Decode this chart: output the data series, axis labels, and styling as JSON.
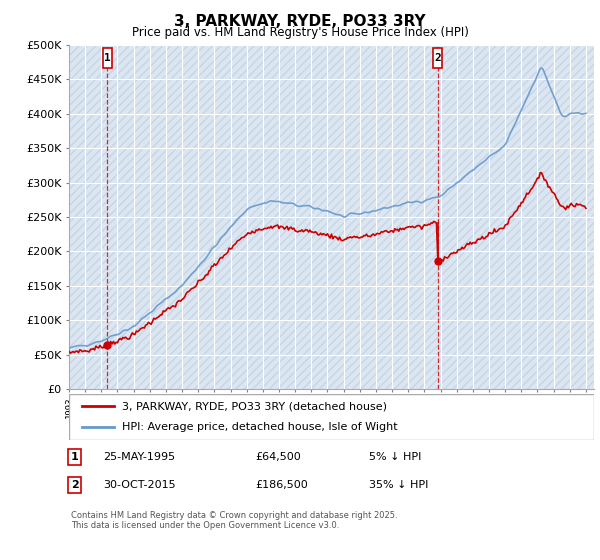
{
  "title": "3, PARKWAY, RYDE, PO33 3RY",
  "subtitle": "Price paid vs. HM Land Registry's House Price Index (HPI)",
  "legend_line1": "3, PARKWAY, RYDE, PO33 3RY (detached house)",
  "legend_line2": "HPI: Average price, detached house, Isle of Wight",
  "footnote": "Contains HM Land Registry data © Crown copyright and database right 2025.\nThis data is licensed under the Open Government Licence v3.0.",
  "marker1_date": "25-MAY-1995",
  "marker1_price": "£64,500",
  "marker1_hpi": "5% ↓ HPI",
  "marker2_date": "30-OCT-2015",
  "marker2_price": "£186,500",
  "marker2_hpi": "35% ↓ HPI",
  "price_line_color": "#cc0000",
  "hpi_line_color": "#6699cc",
  "background_color": "#dce6f1",
  "ylim": [
    0,
    500000
  ],
  "yticks": [
    0,
    50000,
    100000,
    150000,
    200000,
    250000,
    300000,
    350000,
    400000,
    450000,
    500000
  ],
  "sale1_year": 1995.38,
  "sale1_price": 64500,
  "sale2_year": 2015.83,
  "sale2_price": 186500,
  "xmin": 1993,
  "xmax": 2025.5
}
